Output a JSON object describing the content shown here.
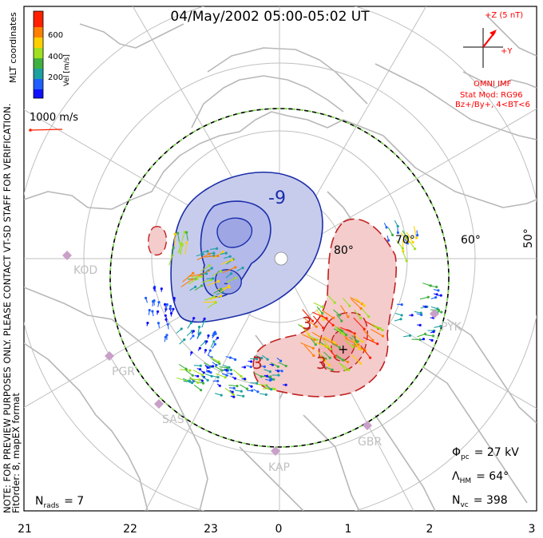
{
  "title": "04/May/2002 05:00-05:02 UT",
  "coordinates_label": "MLT coordinates",
  "colorbar": {
    "label": "Vel [m/s]",
    "ticks": [
      "600",
      "400",
      "200"
    ],
    "colors": [
      "#1010ff",
      "#2060ff",
      "#1ca0a0",
      "#40b040",
      "#a0e020",
      "#ffd000",
      "#ff8000",
      "#ff2000"
    ]
  },
  "velocity_scale_label": "1000 m/s",
  "imf": {
    "z_label": "+Z (5 nT)",
    "y_label": "+Y",
    "source": "OMNI IMF",
    "model_line1": "Stat Mod: RG96",
    "model_line2": "Bz+/By+, 4<BT<6",
    "color": "#ff0000"
  },
  "latitude_labels": [
    "80°",
    "70°",
    "60°",
    "50°"
  ],
  "mlt_labels": [
    "21",
    "22",
    "23",
    "0",
    "1",
    "2",
    "3"
  ],
  "contour_labels": {
    "negative": "-9",
    "negative_inner": "-",
    "positive1": "3",
    "positive2": "3",
    "positive3": "3",
    "positive_inner": "+"
  },
  "stations": [
    "KOD",
    "PGR",
    "SAS",
    "KAP",
    "GBR",
    "PYK"
  ],
  "stats": {
    "phi_pc_sym": "Φ",
    "phi_pc_sub": "pc",
    "phi_pc_value": "= 27 kV",
    "lambda_hm_sym": "Λ",
    "lambda_hm_sub": "HM",
    "lambda_hm_value": "= 64°",
    "n_vc_sym": "N",
    "n_vc_sub": "vc",
    "n_vc_value": "= 398",
    "n_rads_sym": "N",
    "n_rads_sub": "rads",
    "n_rads_value": "= 7"
  },
  "side_note_line1": "NOTE: FOR PREVIEW PURPOSES ONLY. PLEASE CONTACT VT-SD STAFF FOR VERIFICATION.",
  "side_note_line2": "FitOrder: 8, mapEX format",
  "colors": {
    "negative_contour": "#1a2ea8",
    "negative_fill": "#c8ccec",
    "positive_contour": "#c02020",
    "positive_fill": "#f4cccc",
    "grid": "#c0c0c0",
    "coast": "#b8b8b8",
    "station": "#c8a0c8",
    "hm_boundary_dash": "#70d040"
  }
}
